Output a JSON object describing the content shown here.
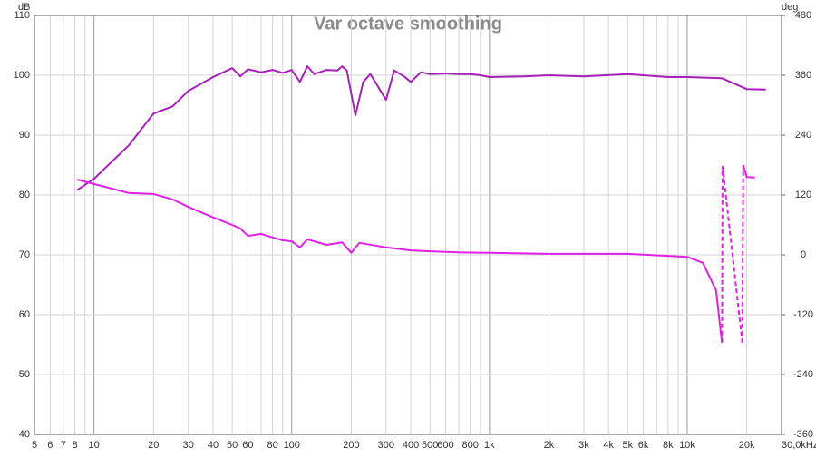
{
  "chart_data": {
    "type": "line",
    "title": "Var octave smoothing",
    "ylabel": "dB",
    "y2label": "deg",
    "xscale": "log",
    "xlim": [
      5,
      30000
    ],
    "xticks": [
      5,
      6,
      7,
      8,
      10,
      20,
      30,
      40,
      50,
      60,
      80,
      100,
      200,
      300,
      400,
      500,
      600,
      800,
      {
        "value": 1000,
        "label": "1k"
      },
      {
        "value": 2000,
        "label": "2k"
      },
      {
        "value": 3000,
        "label": "3k"
      },
      {
        "value": 4000,
        "label": "4k"
      },
      {
        "value": 5000,
        "label": "5k"
      },
      {
        "value": 6000,
        "label": "6k"
      },
      {
        "value": 8000,
        "label": "8k"
      },
      {
        "value": 10000,
        "label": "10k"
      },
      {
        "value": 20000,
        "label": "20k"
      },
      {
        "value": 30000,
        "label": "30,0kHz"
      }
    ],
    "xminorticks": [
      9,
      70,
      90,
      700,
      900,
      7000,
      9000
    ],
    "ylim": [
      40,
      110
    ],
    "yticks": [
      40,
      50,
      60,
      70,
      80,
      90,
      100,
      110
    ],
    "y2lim": [
      -360,
      480
    ],
    "y2ticks": [
      -360,
      -240,
      -120,
      0,
      120,
      240,
      360,
      480
    ],
    "grid": true,
    "wrap_dashed": true,
    "series": [
      {
        "color": "#a61fb8",
        "x": [
          8.2,
          10,
          15,
          20,
          25,
          30,
          40,
          50,
          55,
          60,
          70,
          80,
          90,
          100,
          110,
          120,
          130,
          150,
          170,
          180,
          190,
          210,
          230,
          250,
          300,
          330,
          370,
          400,
          450,
          500,
          600,
          700,
          800,
          900,
          1000,
          1500,
          2000,
          3000,
          5000,
          8000,
          10000,
          15000,
          20000,
          25000
        ],
        "values": [
          80.8,
          82.7,
          88.3,
          93.6,
          94.8,
          97.4,
          99.7,
          101.2,
          99.8,
          101,
          100.5,
          100.9,
          100.4,
          100.9,
          98.9,
          101.5,
          100.2,
          100.9,
          100.8,
          101.5,
          100.8,
          93.3,
          98.9,
          100.2,
          95.9,
          100.8,
          99.8,
          98.9,
          100.5,
          100.2,
          100.3,
          100.2,
          100.2,
          100,
          99.7,
          99.8,
          100,
          99.8,
          100.2,
          99.7,
          99.7,
          99.5,
          97.7,
          97.6
        ]
      },
      {
        "color": "#e020e8",
        "axis": "y2",
        "x": [
          8.2,
          10,
          15,
          20,
          25,
          30,
          40,
          50,
          55,
          60,
          70,
          80,
          90,
          100,
          110,
          120,
          150,
          180,
          200,
          220,
          300,
          400,
          500,
          700,
          1000,
          2000,
          5000,
          10000,
          12000,
          14000,
          15000,
          15100,
          19000,
          19200,
          20000,
          22000
        ],
        "values": [
          151,
          142,
          124,
          122,
          111,
          96,
          75,
          60,
          53,
          38,
          42,
          35,
          29,
          27,
          15,
          31,
          20,
          25,
          4,
          24,
          15,
          9,
          7,
          5,
          4,
          2,
          2,
          -4,
          -16,
          -71,
          -176,
          178,
          -176,
          180,
          156,
          155
        ]
      }
    ]
  }
}
